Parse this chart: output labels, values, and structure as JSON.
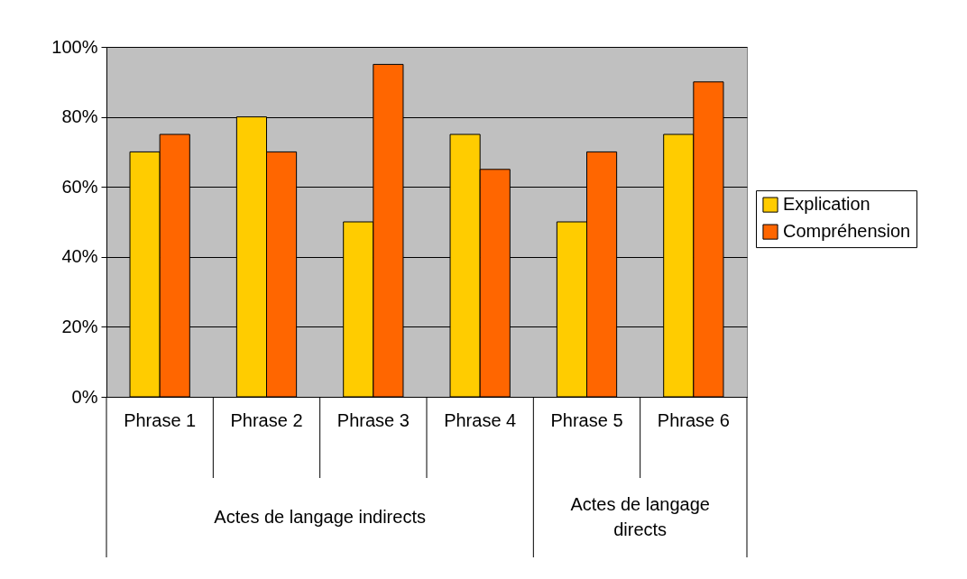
{
  "chart_data": {
    "type": "bar",
    "categories": [
      "Phrase 1",
      "Phrase 2",
      "Phrase 3",
      "Phrase 4",
      "Phrase 5",
      "Phrase 6"
    ],
    "series": [
      {
        "name": "Explication",
        "color": "#ffcc00",
        "values": [
          70,
          80,
          50,
          75,
          50,
          75
        ]
      },
      {
        "name": "Compréhension",
        "color": "#ff6600",
        "values": [
          75,
          70,
          95,
          65,
          70,
          90
        ]
      }
    ],
    "ylim": [
      0,
      100
    ],
    "yticks": [
      {
        "value": 0,
        "label": "0%"
      },
      {
        "value": 20,
        "label": "20%"
      },
      {
        "value": 40,
        "label": "40%"
      },
      {
        "value": 60,
        "label": "60%"
      },
      {
        "value": 80,
        "label": "80%"
      },
      {
        "value": 100,
        "label": "100%"
      }
    ],
    "grid": "y",
    "legend": "right",
    "annotations": [
      "Actes de langage indirects",
      "Actes de langage directs"
    ]
  }
}
